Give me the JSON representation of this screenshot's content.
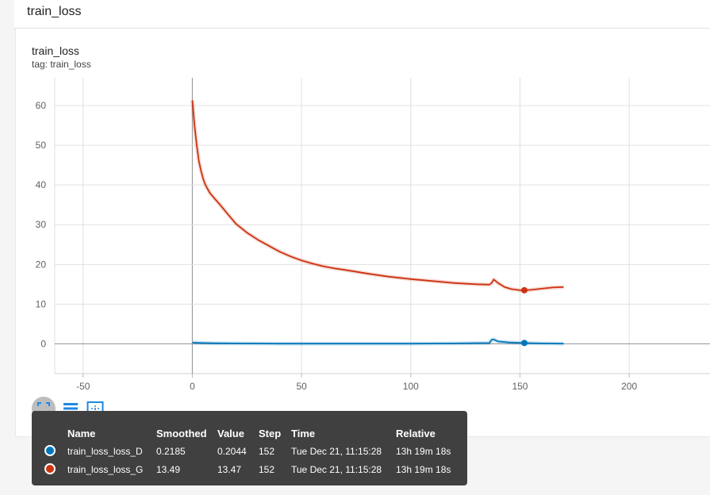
{
  "group": {
    "title": "train_loss"
  },
  "card": {
    "title": "train_loss",
    "tag": "tag: train_loss"
  },
  "colors": {
    "D": "#0077bb",
    "G": "#cc3311"
  },
  "chart_data": {
    "type": "line",
    "title": "train_loss",
    "xlim": [
      -63,
      237
    ],
    "ylim": [
      -7.5,
      67
    ],
    "xticks": [
      -50,
      0,
      50,
      100,
      150,
      200
    ],
    "yticks": [
      0,
      10,
      20,
      30,
      40,
      50,
      60
    ],
    "grid": true,
    "series": [
      {
        "name": "train_loss_loss_D",
        "color": "#0077bb",
        "x": [
          0,
          5,
          10,
          20,
          40,
          60,
          80,
          100,
          120,
          136,
          137,
          138,
          140,
          145,
          152,
          160,
          170
        ],
        "y": [
          0.3,
          0.2,
          0.15,
          0.1,
          0.05,
          0.05,
          0.05,
          0.05,
          0.1,
          0.2,
          1.0,
          1.1,
          0.6,
          0.35,
          0.2185,
          0.1,
          0.05
        ]
      },
      {
        "name": "train_loss_loss_G",
        "color": "#cc3311",
        "x": [
          0,
          1,
          2,
          3,
          4,
          5,
          6,
          8,
          10,
          13,
          16,
          20,
          25,
          30,
          35,
          40,
          45,
          50,
          55,
          60,
          65,
          70,
          80,
          90,
          100,
          110,
          120,
          130,
          136,
          137,
          138,
          140,
          143,
          146,
          150,
          152,
          155,
          160,
          165,
          170
        ],
        "y": [
          61.3,
          55,
          50,
          46,
          43.5,
          41.5,
          40,
          38,
          36.7,
          34.8,
          32.8,
          30.2,
          28,
          26.2,
          24.7,
          23.2,
          22,
          21,
          20.2,
          19.5,
          19,
          18.6,
          17.7,
          16.9,
          16.3,
          15.8,
          15.3,
          15.0,
          14.9,
          15.3,
          16.2,
          15.3,
          14.3,
          13.8,
          13.5,
          13.49,
          13.6,
          13.9,
          14.2,
          14.3
        ]
      }
    ],
    "highlight_step": 152
  },
  "tooltip": {
    "headers": {
      "name": "Name",
      "smoothed": "Smoothed",
      "value": "Value",
      "step": "Step",
      "time": "Time",
      "relative": "Relative"
    },
    "rows": [
      {
        "name": "train_loss_loss_D",
        "smoothed": "0.2185",
        "value": "0.2044",
        "step": "152",
        "time": "Tue Dec 21, 11:15:28",
        "relative": "13h 19m 18s",
        "color": "#0077bb"
      },
      {
        "name": "train_loss_loss_G",
        "smoothed": "13.49",
        "value": "13.47",
        "step": "152",
        "time": "Tue Dec 21, 11:15:28",
        "relative": "13h 19m 18s",
        "color": "#cc3311"
      }
    ]
  },
  "toolbar": {
    "icons": [
      "fit-domain-icon",
      "data-table-icon",
      "toggle-y-axis-icon"
    ]
  }
}
